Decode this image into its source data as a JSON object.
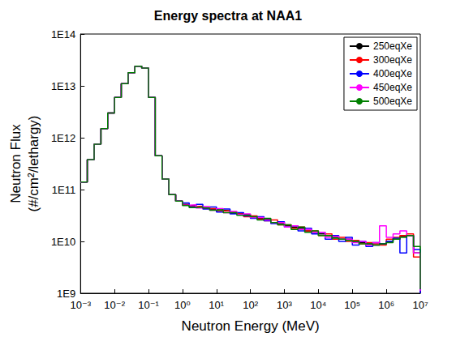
{
  "chart_data": {
    "type": "line",
    "line_style": "step",
    "title": "Energy spectra at NAA1",
    "x_label": "Neutron Energy (MeV)",
    "y_label": "Neutron Flux\n(#/cm²/lethargy)",
    "log": true,
    "grid": false,
    "legend": "upper right",
    "xlim": [
      0.001,
      10000000
    ],
    "ylim": [
      1000000000.0,
      100000000000000.0
    ],
    "xticks": [
      {
        "value": 0.001,
        "label": "10⁻³"
      },
      {
        "value": 0.01,
        "label": "10⁻²"
      },
      {
        "value": 0.1,
        "label": "10⁻¹"
      },
      {
        "value": 1,
        "label": "10⁰"
      },
      {
        "value": 10,
        "label": "10¹"
      },
      {
        "value": 100,
        "label": "10²"
      },
      {
        "value": 1000,
        "label": "10³"
      },
      {
        "value": 10000,
        "label": "10⁴"
      },
      {
        "value": 100000,
        "label": "10⁵"
      },
      {
        "value": 1000000,
        "label": "10⁶"
      },
      {
        "value": 10000000,
        "label": "10⁷"
      }
    ],
    "yticks": [
      {
        "value": 1000000000.0,
        "label": "1E9"
      },
      {
        "value": 10000000000.0,
        "label": "1E10"
      },
      {
        "value": 100000000000.0,
        "label": "1E11"
      },
      {
        "value": 1000000000000.0,
        "label": "1E12"
      },
      {
        "value": 10000000000000.0,
        "label": "1E13"
      },
      {
        "value": 100000000000000.0,
        "label": "1E14"
      }
    ],
    "x": [
      0.001,
      0.00158,
      0.00251,
      0.00398,
      0.00631,
      0.01,
      0.0158,
      0.0251,
      0.0398,
      0.0631,
      0.1,
      0.158,
      0.251,
      0.398,
      0.631,
      1,
      1.58,
      2.51,
      3.98,
      6.31,
      10,
      15.8,
      25.1,
      39.8,
      63.1,
      100,
      158,
      251,
      398,
      631,
      1000,
      1580,
      2510,
      3980,
      6310,
      10000,
      15800,
      25100,
      39800,
      63100,
      100000,
      158000,
      251000,
      398000,
      631000,
      1000000,
      1580000,
      2510000,
      3980000,
      6310000,
      10000000
    ],
    "series": [
      {
        "name": "250eqXe",
        "color": "#000000",
        "values": [
          140000000000.0,
          380000000000.0,
          750000000000.0,
          1500000000000.0,
          3000000000000.0,
          6000000000000.0,
          11000000000000.0,
          18000000000000.0,
          24000000000000.0,
          22000000000000.0,
          6000000000000.0,
          450000000000.0,
          160000000000.0,
          80000000000.0,
          60000000000.0,
          52000000000.0,
          49000000000.0,
          45000000000.0,
          45000000000.0,
          41000000000.0,
          40000000000.0,
          39000000000.0,
          35000000000.0,
          34000000000.0,
          33000000000.0,
          29000000000.0,
          28000000000.0,
          27000000000.0,
          23000000000.0,
          22000000000.0,
          20000000000.0,
          19000000000.0,
          18000000000.0,
          16000000000.0,
          15000000000.0,
          14000000000.0,
          13000000000.0,
          12000000000.0,
          11000000000.0,
          11000000000.0,
          10000000000.0,
          9500000000.0,
          9000000000.0,
          8500000000.0,
          9000000000.0,
          10000000000.0,
          11000000000.0,
          12500000000.0,
          13000000000.0,
          6000000000.0,
          1200000000.0
        ]
      },
      {
        "name": "300eqXe",
        "color": "#ff0000",
        "values": [
          140000000000.0,
          380000000000.0,
          750000000000.0,
          1500000000000.0,
          3000000000000.0,
          6000000000000.0,
          11000000000000.0,
          18000000000000.0,
          24000000000000.0,
          22000000000000.0,
          6000000000000.0,
          450000000000.0,
          160000000000.0,
          80000000000.0,
          60000000000.0,
          50000000000.0,
          47000000000.0,
          48000000000.0,
          43000000000.0,
          43000000000.0,
          38000000000.0,
          39000000000.0,
          37000000000.0,
          35000000000.0,
          30000000000.0,
          31000000000.0,
          27000000000.0,
          25000000000.0,
          26000000000.0,
          21000000000.0,
          21000000000.0,
          18000000000.0,
          19000000000.0,
          16000000000.0,
          16000000000.0,
          13000000000.0,
          14000000000.0,
          11000000000.0,
          12000000000.0,
          10000000000.0,
          10500000000.0,
          9000000000.0,
          9500000000.0,
          9000000000.0,
          8500000000.0,
          11000000000.0,
          12000000000.0,
          13000000000.0,
          14000000000.0,
          5000000000.0,
          1300000000.0
        ]
      },
      {
        "name": "400eqXe",
        "color": "#0000ff",
        "values": [
          140000000000.0,
          380000000000.0,
          750000000000.0,
          1500000000000.0,
          3000000000000.0,
          6000000000000.0,
          11000000000000.0,
          18000000000000.0,
          24000000000000.0,
          22000000000000.0,
          6000000000000.0,
          450000000000.0,
          160000000000.0,
          80000000000.0,
          60000000000.0,
          55000000000.0,
          46000000000.0,
          52000000000.0,
          42000000000.0,
          46000000000.0,
          37000000000.0,
          42000000000.0,
          34000000000.0,
          36000000000.0,
          31000000000.0,
          28000000000.0,
          30000000000.0,
          25000000000.0,
          22000000000.0,
          24000000000.0,
          19000000000.0,
          20000000000.0,
          16000000000.0,
          18000000000.0,
          14000000000.0,
          15000000000.0,
          11000000000.0,
          13000000000.0,
          10000000000.0,
          12000000000.0,
          8500000000.0,
          10000000000.0,
          8000000000.0,
          9500000000.0,
          9000000000.0,
          10000000000.0,
          11500000000.0,
          6000000000.0,
          13000000000.0,
          7000000000.0,
          1000000000.0
        ]
      },
      {
        "name": "450eqXe",
        "color": "#ff00ff",
        "values": [
          140000000000.0,
          380000000000.0,
          750000000000.0,
          1500000000000.0,
          3000000000000.0,
          6000000000000.0,
          11000000000000.0,
          18000000000000.0,
          24000000000000.0,
          22000000000000.0,
          6000000000000.0,
          450000000000.0,
          160000000000.0,
          80000000000.0,
          60000000000.0,
          50000000000.0,
          51000000000.0,
          44000000000.0,
          47000000000.0,
          40000000000.0,
          43000000000.0,
          36000000000.0,
          38000000000.0,
          33000000000.0,
          34000000000.0,
          29000000000.0,
          29000000000.0,
          26000000000.0,
          23000000000.0,
          23000000000.0,
          19000000000.0,
          20000000000.0,
          17000000000.0,
          17000000000.0,
          15000000000.0,
          15000000000.0,
          12000000000.0,
          12500000000.0,
          11000000000.0,
          11000000000.0,
          9500000000.0,
          10000000000.0,
          8500000000.0,
          9500000000.0,
          20000000000.0,
          12000000000.0,
          14000000000.0,
          16000000000.0,
          13000000000.0,
          6000000000.0,
          1100000000.0
        ]
      },
      {
        "name": "500eqXe",
        "color": "#008000",
        "values": [
          140000000000.0,
          380000000000.0,
          750000000000.0,
          1500000000000.0,
          3000000000000.0,
          6000000000000.0,
          11000000000000.0,
          18000000000000.0,
          24000000000000.0,
          22000000000000.0,
          6000000000000.0,
          450000000000.0,
          160000000000.0,
          80000000000.0,
          60000000000.0,
          49000000000.0,
          45000000000.0,
          46000000000.0,
          44000000000.0,
          40000000000.0,
          41000000000.0,
          36000000000.0,
          36000000000.0,
          32000000000.0,
          32000000000.0,
          30000000000.0,
          26000000000.0,
          28000000000.0,
          23000000000.0,
          21000000000.0,
          21000000000.0,
          17000000000.0,
          19000000000.0,
          15000000000.0,
          16000000000.0,
          13000000000.0,
          13000000000.0,
          11500000000.0,
          11000000000.0,
          10500000000.0,
          10000000000.0,
          9000000000.0,
          9000000000.0,
          8500000000.0,
          9000000000.0,
          9500000000.0,
          11000000000.0,
          12000000000.0,
          13000000000.0,
          8000000000.0,
          1200000000.0
        ]
      }
    ]
  }
}
